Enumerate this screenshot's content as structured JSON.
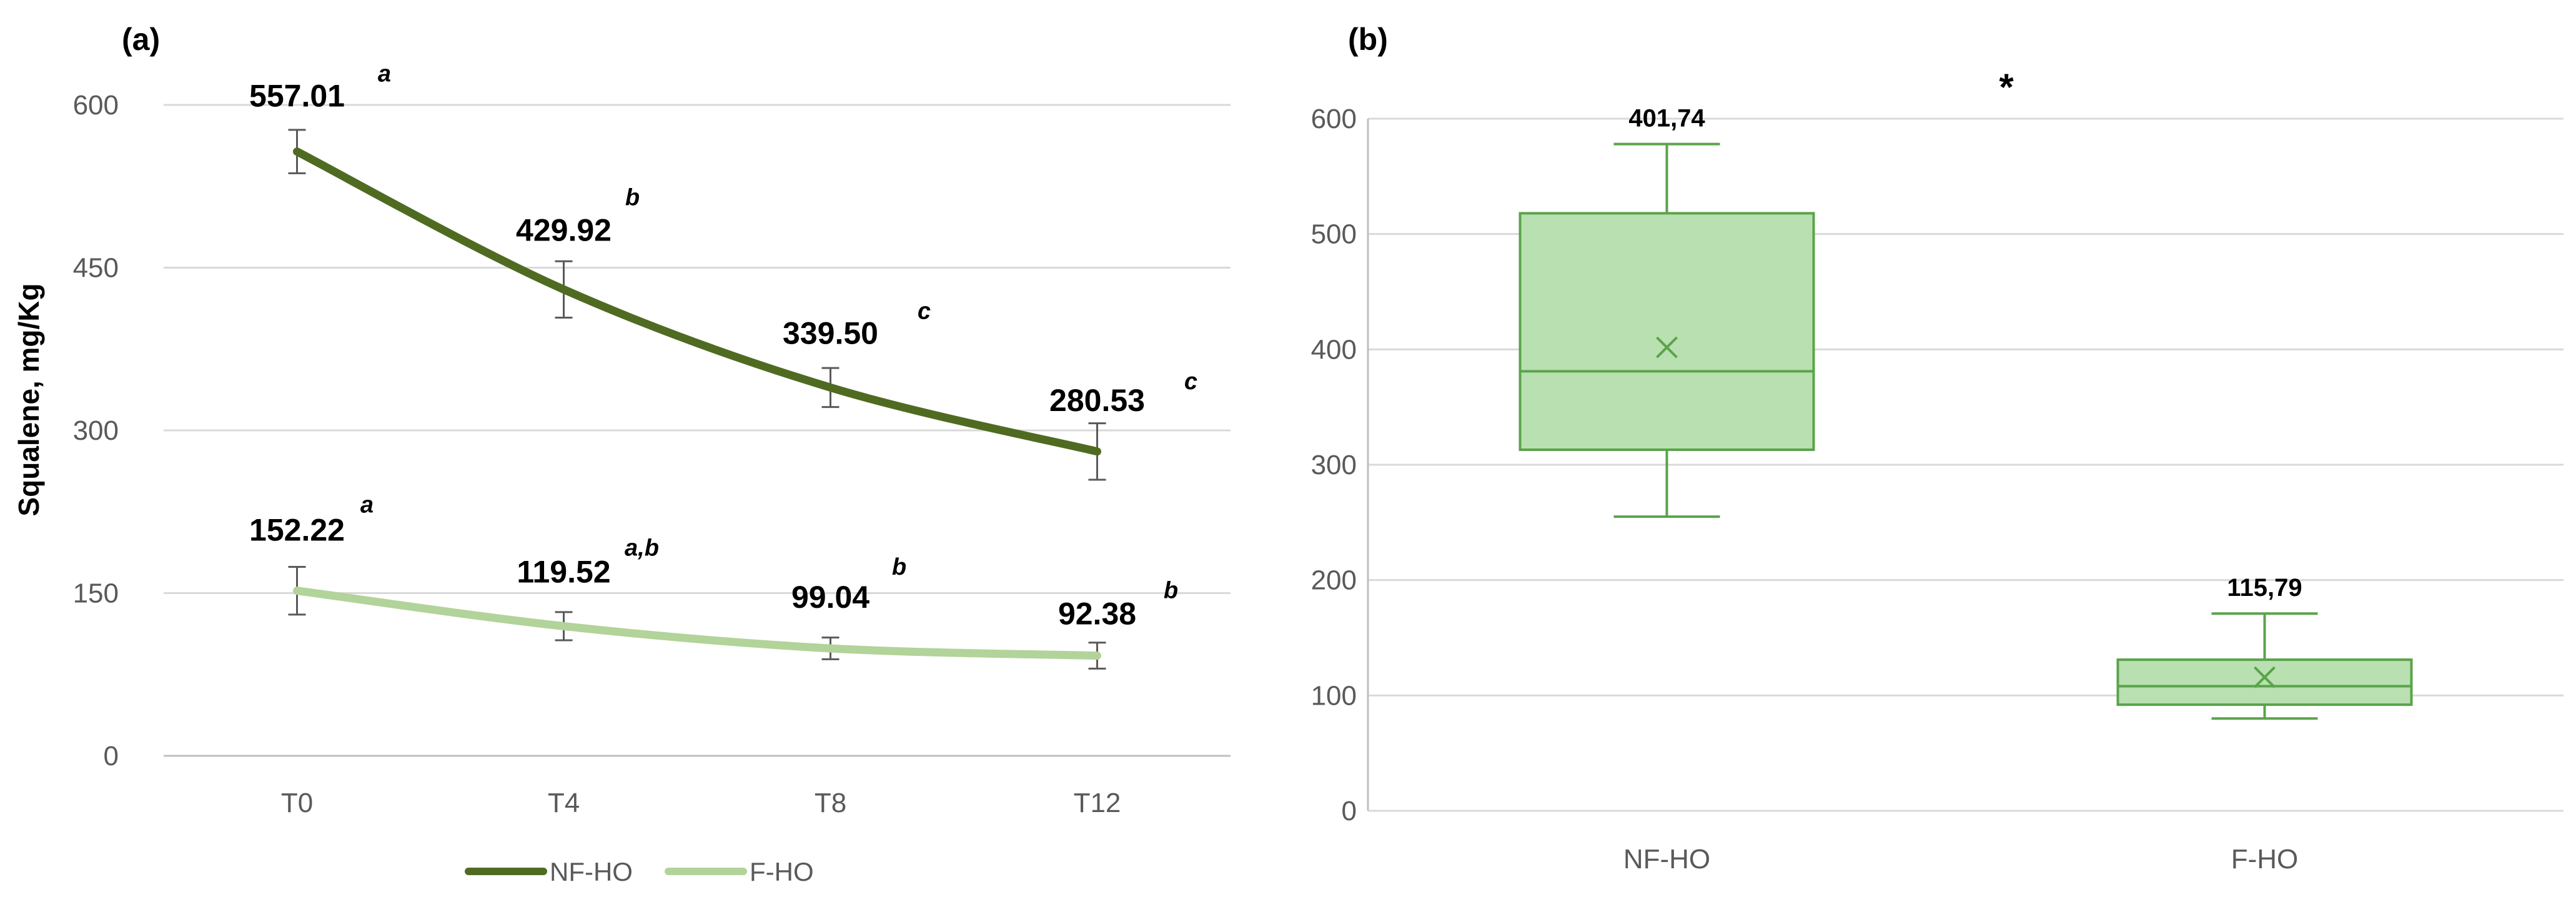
{
  "chart_data": [
    {
      "id": "a",
      "type": "line",
      "panel_label": "(a)",
      "title": "",
      "xlabel": "",
      "ylabel": "Squalene, mg/Kg",
      "categories": [
        "T0",
        "T4",
        "T8",
        "T12"
      ],
      "ylim": [
        0,
        600
      ],
      "yticks": [
        0,
        150,
        300,
        450,
        600
      ],
      "grid": true,
      "legend_position": "bottom",
      "series": [
        {
          "name": "NF-HO",
          "color": "#4f6b22",
          "values": [
            557.01,
            429.92,
            339.5,
            280.53
          ],
          "value_labels": [
            "557.01",
            "429.92",
            "339.50",
            "280.53"
          ],
          "errors": [
            20,
            26,
            18,
            26
          ],
          "significance": [
            "a",
            "b",
            "c",
            "c"
          ]
        },
        {
          "name": "F-HO",
          "color": "#b2d39a",
          "values": [
            152.22,
            119.52,
            99.04,
            92.38
          ],
          "value_labels": [
            "152.22",
            "119.52",
            "99.04",
            "92.38"
          ],
          "errors": [
            22,
            13,
            10,
            12
          ],
          "significance": [
            "a",
            "a,b",
            "b",
            "b"
          ]
        }
      ]
    },
    {
      "id": "b",
      "type": "box",
      "panel_label": "(b)",
      "title": "",
      "xlabel": "",
      "ylabel": "",
      "categories": [
        "NF-HO",
        "F-HO"
      ],
      "ylim": [
        0,
        600
      ],
      "yticks": [
        0,
        100,
        200,
        300,
        400,
        500,
        600
      ],
      "grid": true,
      "significance_marker": "*",
      "fill_color": "#b9e0b0",
      "stroke_color": "#5aa34a",
      "boxes": [
        {
          "name": "NF-HO",
          "min": 255,
          "q1": 313,
          "median": 381,
          "q3": 518,
          "max": 578,
          "mean": 401.74,
          "mean_label": "401,74"
        },
        {
          "name": "F-HO",
          "min": 80,
          "q1": 92,
          "median": 108,
          "q3": 131,
          "max": 171,
          "mean": 115.79,
          "mean_label": "115,79"
        }
      ]
    }
  ]
}
